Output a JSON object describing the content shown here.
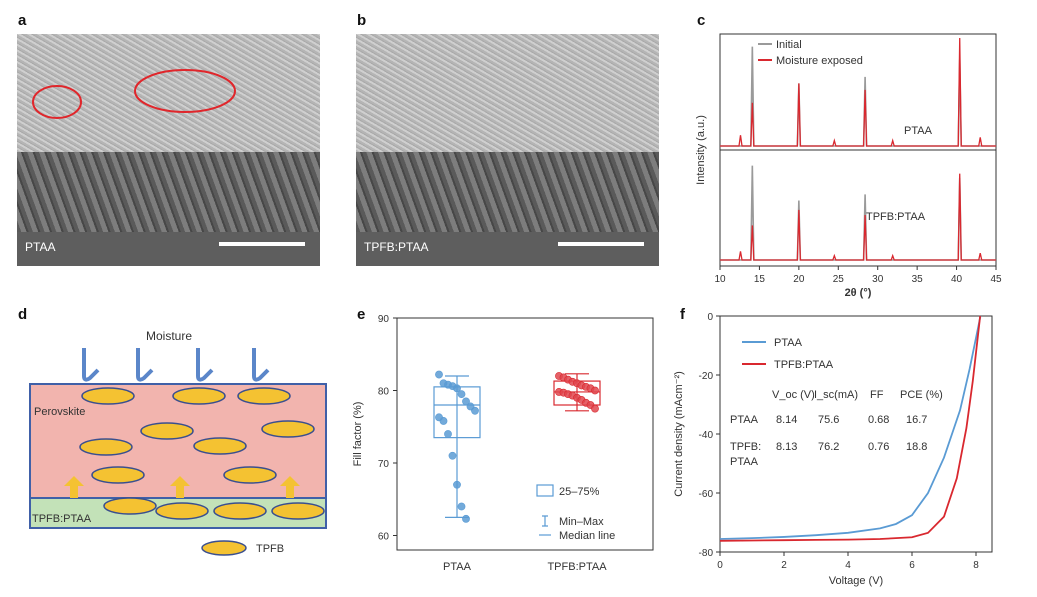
{
  "panels": {
    "a": "a",
    "b": "b",
    "c": "c",
    "d": "d",
    "e": "e",
    "f": "f"
  },
  "panel_a": {
    "caption": "PTAA"
  },
  "panel_b": {
    "caption": "TPFB:PTAA"
  },
  "panel_c": {
    "xlabel": "2θ (°)",
    "ylabel": "Intensity (a.u.)",
    "xticks": [
      "10",
      "15",
      "20",
      "25",
      "30",
      "35",
      "40",
      "45"
    ],
    "legend": [
      "Initial",
      "Moisture exposed"
    ],
    "upper_label": "PTAA",
    "lower_label": "TPFB:PTAA",
    "colors": {
      "initial": "#9a9a9a",
      "moisture": "#d9282f"
    }
  },
  "panel_d": {
    "moisture": "Moisture",
    "perovskite": "Perovskite",
    "layer": "TPFB:PTAA",
    "legend": "TPFB"
  },
  "panel_e": {
    "ylabel": "Fill factor (%)",
    "yticks": [
      "60",
      "70",
      "80",
      "90"
    ],
    "categories": [
      "PTAA",
      "TPFB:PTAA"
    ],
    "legend": {
      "box": "25–75%",
      "whisker": "Min–Max",
      "median": "Median line"
    }
  },
  "panel_f": {
    "xlabel": "Voltage (V)",
    "ylabel": "Current density (mAcm⁻²)",
    "xticks": [
      "0",
      "2",
      "4",
      "6",
      "8"
    ],
    "yticks": [
      "0",
      "-20",
      "-40",
      "-60",
      "-80"
    ],
    "legend": [
      "PTAA",
      "TPFB:PTAA"
    ],
    "table": {
      "headers": [
        "V_oc (V)",
        "I_sc(mA)",
        "FF",
        "PCE (%)"
      ],
      "rows": [
        {
          "name": "PTAA",
          "values": [
            "8.14",
            "75.6",
            "0.68",
            "16.7"
          ]
        },
        {
          "name": "TPFB:",
          "name2": "PTAA",
          "values": [
            "8.13",
            "76.2",
            "0.76",
            "18.8"
          ]
        }
      ]
    }
  },
  "chart_data": [
    {
      "panel": "c",
      "type": "line",
      "title": "",
      "xlabel": "2θ (°)",
      "ylabel": "Intensity (a.u.)",
      "xlim": [
        10,
        45
      ],
      "series": [
        {
          "name": "Initial",
          "peaks_2theta": [
            14.1,
            20.0,
            28.4,
            40.4
          ],
          "rel_height": [
            0.92,
            0.58,
            0.64,
            0.8
          ]
        },
        {
          "name": "Moisture exposed",
          "peaks_2theta": [
            12.6,
            14.1,
            20.0,
            24.5,
            28.4,
            31.9,
            40.4,
            43.0
          ],
          "rel_height": [
            0.1,
            0.4,
            0.58,
            0.05,
            0.52,
            0.05,
            1.0,
            0.08
          ]
        }
      ]
    },
    {
      "panel": "e",
      "type": "box",
      "title": "",
      "ylabel": "Fill factor (%)",
      "ylim": [
        58,
        90
      ],
      "categories": [
        "PTAA",
        "TPFB:PTAA"
      ],
      "series": [
        {
          "name": "PTAA",
          "q1": 73.5,
          "median": 78,
          "q3": 80.5,
          "min": 62.5,
          "max": 82,
          "points": [
            82.2,
            81,
            80.8,
            80.6,
            80.3,
            79.5,
            78.5,
            77.8,
            77.2,
            76.3,
            75.8,
            74,
            71,
            67,
            64,
            62.3
          ]
        },
        {
          "name": "TPFB:PTAA",
          "q1": 78,
          "median": 79.8,
          "q3": 81.3,
          "min": 77.2,
          "max": 82.3,
          "points": [
            82,
            81.8,
            81.5,
            81.2,
            81,
            80.7,
            80.5,
            80.3,
            80,
            79.8,
            79.7,
            79.5,
            79.3,
            79,
            78.7,
            78.3,
            78,
            77.5
          ]
        }
      ]
    },
    {
      "panel": "f",
      "type": "line",
      "title": "",
      "xlabel": "Voltage (V)",
      "ylabel": "Current density (mAcm⁻²)",
      "xlim": [
        0,
        8.5
      ],
      "ylim": [
        -80,
        0
      ],
      "series": [
        {
          "name": "PTAA",
          "x": [
            0,
            1,
            2,
            3,
            4,
            5,
            5.5,
            6,
            6.5,
            7,
            7.5,
            7.8,
            8.14
          ],
          "y": [
            -75.6,
            -75.3,
            -74.9,
            -74.3,
            -73.5,
            -72,
            -70.5,
            -67.5,
            -60,
            -48,
            -32,
            -18,
            0
          ]
        },
        {
          "name": "TPFB:PTAA",
          "x": [
            0,
            1,
            2,
            3,
            4,
            5,
            6,
            6.5,
            7,
            7.4,
            7.7,
            7.9,
            8.13
          ],
          "y": [
            -76.2,
            -76.1,
            -76,
            -75.9,
            -75.8,
            -75.6,
            -75,
            -73.5,
            -68,
            -55,
            -38,
            -22,
            0
          ]
        }
      ]
    }
  ]
}
